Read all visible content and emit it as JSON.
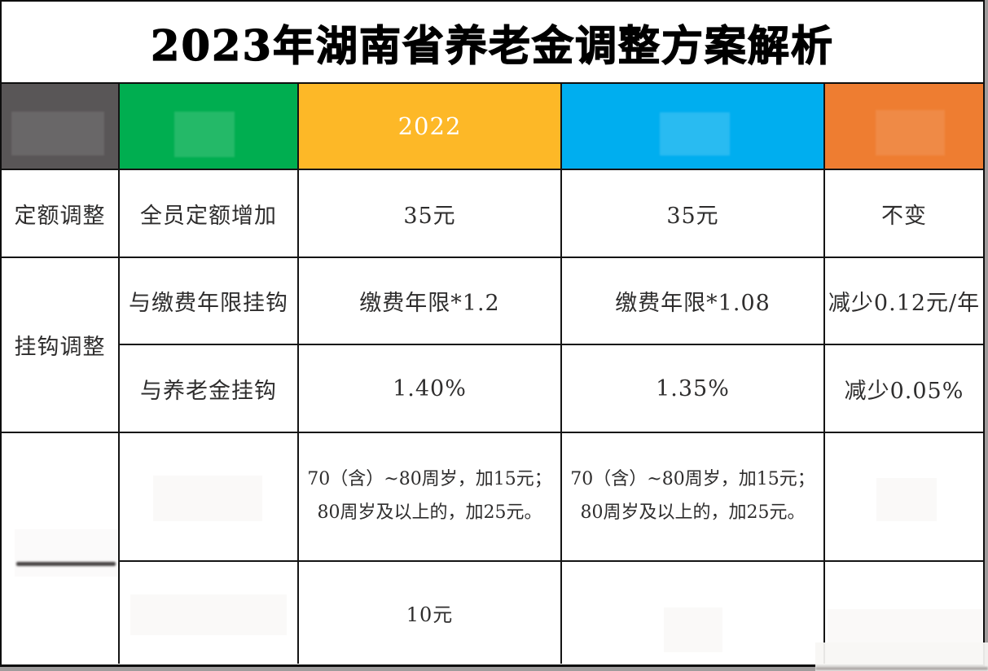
{
  "title": "2023年湖南省养老金调整方案解析",
  "header": {
    "colors": {
      "c1": "#595657",
      "c2": "#00AE50",
      "c3": "#FDB827",
      "c4": "#00AEEF",
      "c5": "#EE7D31"
    },
    "labels": {
      "c3": "2022"
    }
  },
  "table": {
    "row1": {
      "c1": "定额调整",
      "c2": "全员定额增加",
      "c3": "35元",
      "c4": "35元",
      "c5": "不变"
    },
    "row2": {
      "c1": "挂钩调整",
      "c2": "与缴费年限挂钩",
      "c3": "缴费年限*1.2",
      "c4": "缴费年限*1.08",
      "c5": "减少0.12元/年"
    },
    "row3": {
      "c2": "与养老金挂钩",
      "c3": "1.40%",
      "c4": "1.35%",
      "c5": "减少0.05%"
    },
    "row4": {
      "c3_line1": "70（含）~80周岁，加15元；",
      "c3_line2": "80周岁及以上的，加25元。",
      "c4_line1": "70（含）~80周岁，加15元；",
      "c4_line2": "80周岁及以上的，加25元。"
    },
    "row5": {
      "c3": "10元"
    }
  },
  "chart_data": {
    "type": "table",
    "title": "2023年湖南省养老金调整方案解析",
    "header_row": [
      "",
      "",
      "2022",
      "",
      ""
    ],
    "header_colors": [
      "#595657",
      "#00AE50",
      "#FDB827",
      "#00AEEF",
      "#EE7D31"
    ],
    "rows": [
      [
        "定额调整",
        "全员定额增加",
        "35元",
        "35元",
        "不变"
      ],
      [
        "挂钩调整",
        "与缴费年限挂钩",
        "缴费年限*1.2",
        "缴费年限*1.08",
        "减少0.12元/年"
      ],
      [
        "挂钩调整",
        "与养老金挂钩",
        "1.40%",
        "1.35%",
        "减少0.05%"
      ],
      [
        "",
        "",
        "70（含）~80周岁，加15元；80周岁及以上的，加25元。",
        "70（含）~80周岁，加15元；80周岁及以上的，加25元。",
        ""
      ],
      [
        "",
        "",
        "10元",
        "",
        ""
      ]
    ],
    "layout": {
      "merged_cells": [
        "row2-row3 col1 (挂钩调整)",
        "row4-row5 col1 (blank)"
      ],
      "redacted_header_cols": [
        1,
        2,
        4,
        5
      ],
      "grid": "black 2px lines"
    }
  }
}
